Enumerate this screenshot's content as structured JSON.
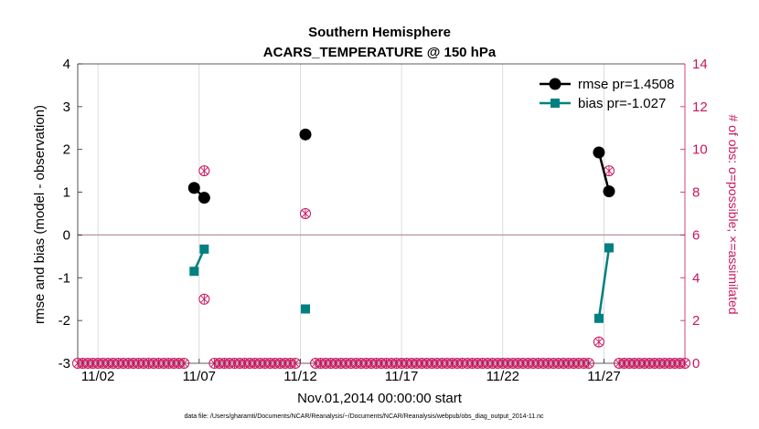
{
  "chart_data": {
    "type": "line",
    "title": [
      "Southern Hemisphere",
      "ACARS_TEMPERATURE @ 150 hPa"
    ],
    "xlabel": "Nov.01,2014 00:00:00 start",
    "ylabel": "rmse and bias (model - observation)",
    "y2label": "# of obs: o=possible; ×=assimilated",
    "footer": "data file: /Users/gharamti/Documents/NCAR/Reanalysis/~/Documents/NCAR/Reanalysis/webpub/obs_diag_output_2014-11.nc",
    "xlim": [
      0,
      30
    ],
    "ylim": [
      -3,
      4
    ],
    "y2lim": [
      0,
      14
    ],
    "x_ticks": [
      1,
      6,
      11,
      16,
      21,
      26
    ],
    "x_tick_labels": [
      "11/02",
      "11/07",
      "11/12",
      "11/17",
      "11/22",
      "11/27"
    ],
    "y_ticks": [
      -3,
      -2,
      -1,
      0,
      1,
      2,
      3,
      4
    ],
    "y2_ticks": [
      0,
      2,
      4,
      6,
      8,
      10,
      12,
      14
    ],
    "grid": "x",
    "legend_position": "top-right",
    "series": [
      {
        "name": "rmse pr=1.4508",
        "color": "#000000",
        "marker": "circle",
        "segments": [
          [
            [
              5.75,
              1.1
            ],
            [
              6.25,
              0.87
            ]
          ],
          [
            [
              11.25,
              2.35
            ]
          ],
          [
            [
              25.75,
              1.93
            ],
            [
              26.25,
              1.02
            ]
          ]
        ]
      },
      {
        "name": "bias pr=-1.027",
        "color": "#008080",
        "marker": "square",
        "segments": [
          [
            [
              5.75,
              -0.85
            ],
            [
              6.25,
              -0.33
            ]
          ],
          [
            [
              11.25,
              -1.73
            ]
          ],
          [
            [
              25.75,
              -1.95
            ],
            [
              26.25,
              -0.3
            ]
          ]
        ]
      }
    ],
    "obs_count": {
      "color": "#c8155f",
      "nonzero": [
        [
          6.25,
          9
        ],
        [
          6.25,
          3
        ],
        [
          11.25,
          7
        ],
        [
          25.75,
          1
        ],
        [
          26.25,
          9
        ]
      ],
      "zero_range": [
        0,
        30
      ],
      "zero_step": 0.25,
      "gaps": [
        [
          5.5,
          6.5
        ],
        [
          11.0,
          11.5
        ],
        [
          25.5,
          26.5
        ]
      ]
    },
    "zero_line_color": "#b89aa6"
  }
}
